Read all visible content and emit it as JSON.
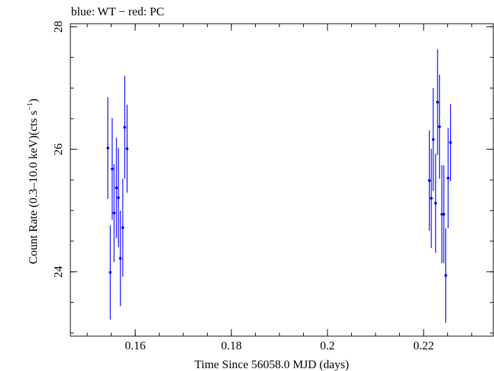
{
  "chart_data": {
    "type": "scatter",
    "title": "blue: WT − red: PC",
    "xlabel": "Time Since 56058.0 MJD (days)",
    "ylabel_parts": [
      "Count Rate (0.3–10.0 keV)(cts s",
      "−1",
      ")"
    ],
    "xlim": [
      0.1465,
      0.2345
    ],
    "ylim": [
      22.95,
      28.05
    ],
    "x_ticks": [
      {
        "value": 0.16,
        "label": "0.16"
      },
      {
        "value": 0.18,
        "label": "0.18"
      },
      {
        "value": 0.2,
        "label": "0.2"
      },
      {
        "value": 0.22,
        "label": "0.22"
      }
    ],
    "x_minor_step": 0.005,
    "y_ticks": [
      {
        "value": 24,
        "label": "24"
      },
      {
        "value": 26,
        "label": "26"
      },
      {
        "value": 28,
        "label": "28"
      }
    ],
    "y_minor_step": 0.5,
    "series": [
      {
        "color": "#0000ff",
        "points": [
          {
            "x": 0.1543,
            "y": 26.02,
            "err": 0.83
          },
          {
            "x": 0.1548,
            "y": 23.99,
            "err": 0.77
          },
          {
            "x": 0.1552,
            "y": 25.68,
            "err": 0.83
          },
          {
            "x": 0.1556,
            "y": 24.96,
            "err": 0.8
          },
          {
            "x": 0.1561,
            "y": 25.37,
            "err": 0.82
          },
          {
            "x": 0.1565,
            "y": 25.21,
            "err": 0.81
          },
          {
            "x": 0.1569,
            "y": 24.22,
            "err": 0.78
          },
          {
            "x": 0.1574,
            "y": 24.72,
            "err": 0.8
          },
          {
            "x": 0.1578,
            "y": 26.36,
            "err": 0.84
          },
          {
            "x": 0.1583,
            "y": 26.01,
            "err": 0.72
          },
          {
            "x": 0.2212,
            "y": 25.49,
            "err": 0.82
          },
          {
            "x": 0.2216,
            "y": 25.2,
            "err": 0.81
          },
          {
            "x": 0.222,
            "y": 26.16,
            "err": 0.84
          },
          {
            "x": 0.2225,
            "y": 25.12,
            "err": 0.81
          },
          {
            "x": 0.2229,
            "y": 26.77,
            "err": 0.86
          },
          {
            "x": 0.2233,
            "y": 26.37,
            "err": 0.85
          },
          {
            "x": 0.2238,
            "y": 24.94,
            "err": 0.8
          },
          {
            "x": 0.2242,
            "y": 24.94,
            "err": 0.8
          },
          {
            "x": 0.2246,
            "y": 23.94,
            "err": 0.77
          },
          {
            "x": 0.2251,
            "y": 25.53,
            "err": 0.82
          },
          {
            "x": 0.2256,
            "y": 26.11,
            "err": 0.63
          }
        ]
      }
    ]
  }
}
